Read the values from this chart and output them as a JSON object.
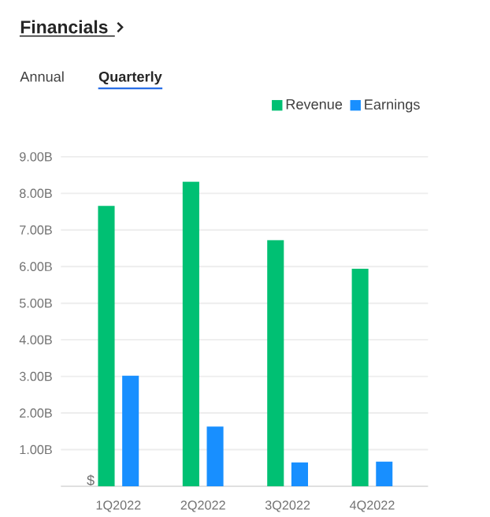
{
  "chart_data": {
    "type": "bar",
    "title": "Financials",
    "annotations": [
      "Annual",
      "Quarterly",
      "$"
    ],
    "categories": [
      "1Q2022",
      "2Q2022",
      "3Q2022",
      "4Q2022"
    ],
    "series": [
      {
        "name": "Revenue",
        "color": "#00c073",
        "values": [
          7.66,
          8.32,
          6.72,
          5.94
        ]
      },
      {
        "name": "Earnings",
        "color": "#188fff",
        "values": [
          3.02,
          1.63,
          0.65,
          0.67
        ]
      }
    ],
    "ylim": [
      0,
      9
    ],
    "yticks": [
      {
        "value": 1,
        "label": "1.00B"
      },
      {
        "value": 2,
        "label": "2.00B"
      },
      {
        "value": 3,
        "label": "3.00B"
      },
      {
        "value": 4,
        "label": "4.00B"
      },
      {
        "value": 5,
        "label": "5.00B"
      },
      {
        "value": 6,
        "label": "6.00B"
      },
      {
        "value": 7,
        "label": "7.00B"
      },
      {
        "value": 8,
        "label": "8.00B"
      },
      {
        "value": 9,
        "label": "9.00B"
      }
    ],
    "grid": "y",
    "legend": "top right"
  }
}
